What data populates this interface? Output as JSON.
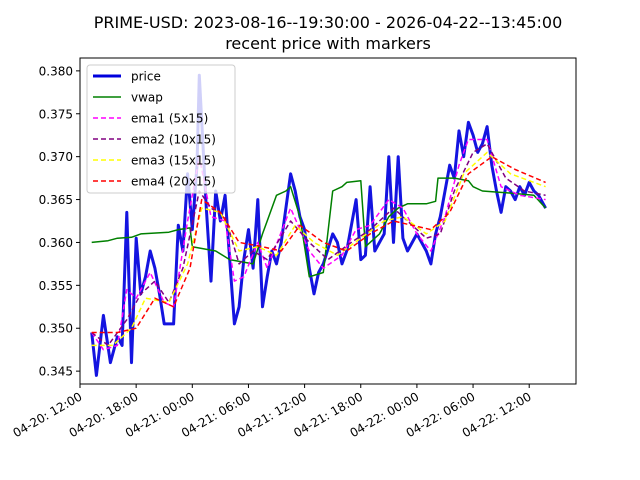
{
  "chart_data": {
    "type": "line",
    "title": "PRIME-USD: 2023-08-16--19:30:00 - 2026-04-22--13:45:00",
    "subtitle": "recent price with markers",
    "xlabel": "",
    "ylabel": "",
    "xlim": [
      "2026-04-20 12:00",
      "2026-04-22 17:00"
    ],
    "ylim": [
      0.3435,
      0.3815
    ],
    "grid": false,
    "legend_position": "top-left",
    "x_tick_labels": [
      "04-20: 12:00",
      "04-20: 18:00",
      "04-21: 00:00",
      "04-21: 06:00",
      "04-21: 12:00",
      "04-21: 18:00",
      "04-22: 00:00",
      "04-22: 06:00",
      "04-22: 12:00"
    ],
    "x_ticks": [
      "2026-04-20 12:00",
      "2026-04-20 18:00",
      "2026-04-21 00:00",
      "2026-04-21 06:00",
      "2026-04-21 12:00",
      "2026-04-21 18:00",
      "2026-04-22 00:00",
      "2026-04-22 06:00",
      "2026-04-22 12:00"
    ],
    "y_ticks": [
      "0.345",
      "0.350",
      "0.355",
      "0.360",
      "0.365",
      "0.370",
      "0.375",
      "0.380"
    ],
    "series": [
      {
        "name": "price",
        "color": "#0000dd",
        "dash": "solid",
        "width": 3,
        "points": [
          [
            "2026-04-20 13:15",
            0.3495
          ],
          [
            "2026-04-20 13:45",
            0.3445
          ],
          [
            "2026-04-20 14:30",
            0.3515
          ],
          [
            "2026-04-20 15:15",
            0.346
          ],
          [
            "2026-04-20 16:00",
            0.349
          ],
          [
            "2026-04-20 16:30",
            0.348
          ],
          [
            "2026-04-20 17:00",
            0.3635
          ],
          [
            "2026-04-20 17:30",
            0.346
          ],
          [
            "2026-04-20 18:00",
            0.3605
          ],
          [
            "2026-04-20 18:30",
            0.354
          ],
          [
            "2026-04-20 19:00",
            0.356
          ],
          [
            "2026-04-20 19:30",
            0.359
          ],
          [
            "2026-04-20 20:00",
            0.357
          ],
          [
            "2026-04-20 20:30",
            0.354
          ],
          [
            "2026-04-20 21:00",
            0.3505
          ],
          [
            "2026-04-20 22:00",
            0.3505
          ],
          [
            "2026-04-20 22:30",
            0.362
          ],
          [
            "2026-04-20 23:00",
            0.359
          ],
          [
            "2026-04-20 23:30",
            0.368
          ],
          [
            "2026-04-21 00:00",
            0.3615
          ],
          [
            "2026-04-21 00:30",
            0.369
          ],
          [
            "2026-04-21 00:45",
            0.3795
          ],
          [
            "2026-04-21 01:30",
            0.364
          ],
          [
            "2026-04-21 02:00",
            0.3555
          ],
          [
            "2026-04-21 02:30",
            0.366
          ],
          [
            "2026-04-21 03:00",
            0.3625
          ],
          [
            "2026-04-21 03:30",
            0.3655
          ],
          [
            "2026-04-21 04:00",
            0.358
          ],
          [
            "2026-04-21 04:30",
            0.3505
          ],
          [
            "2026-04-21 05:00",
            0.3525
          ],
          [
            "2026-04-21 05:30",
            0.358
          ],
          [
            "2026-04-21 06:00",
            0.3615
          ],
          [
            "2026-04-21 06:30",
            0.357
          ],
          [
            "2026-04-21 07:00",
            0.365
          ],
          [
            "2026-04-21 07:30",
            0.3525
          ],
          [
            "2026-04-21 08:00",
            0.356
          ],
          [
            "2026-04-21 08:30",
            0.359
          ],
          [
            "2026-04-21 09:00",
            0.3575
          ],
          [
            "2026-04-21 09:30",
            0.36
          ],
          [
            "2026-04-21 10:30",
            0.368
          ],
          [
            "2026-04-21 11:00",
            0.366
          ],
          [
            "2026-04-21 11:30",
            0.363
          ],
          [
            "2026-04-21 12:00",
            0.3615
          ],
          [
            "2026-04-21 12:30",
            0.357
          ],
          [
            "2026-04-21 13:00",
            0.354
          ],
          [
            "2026-04-21 13:30",
            0.3565
          ],
          [
            "2026-04-21 14:00",
            0.3575
          ],
          [
            "2026-04-21 15:00",
            0.361
          ],
          [
            "2026-04-21 15:30",
            0.36
          ],
          [
            "2026-04-21 16:00",
            0.3575
          ],
          [
            "2026-04-21 16:30",
            0.359
          ],
          [
            "2026-04-21 17:00",
            0.362
          ],
          [
            "2026-04-21 17:30",
            0.365
          ],
          [
            "2026-04-21 18:00",
            0.358
          ],
          [
            "2026-04-21 18:30",
            0.3585
          ],
          [
            "2026-04-21 19:00",
            0.3665
          ],
          [
            "2026-04-21 19:30",
            0.359
          ],
          [
            "2026-04-21 20:00",
            0.36
          ],
          [
            "2026-04-21 20:30",
            0.361
          ],
          [
            "2026-04-21 21:00",
            0.37
          ],
          [
            "2026-04-21 21:30",
            0.36
          ],
          [
            "2026-04-21 22:00",
            0.37
          ],
          [
            "2026-04-21 22:30",
            0.3605
          ],
          [
            "2026-04-21 23:00",
            0.359
          ],
          [
            "2026-04-22 00:00",
            0.361
          ],
          [
            "2026-04-22 01:00",
            0.359
          ],
          [
            "2026-04-22 01:30",
            0.3575
          ],
          [
            "2026-04-22 02:00",
            0.361
          ],
          [
            "2026-04-22 02:30",
            0.363
          ],
          [
            "2026-04-22 03:00",
            0.366
          ],
          [
            "2026-04-22 03:30",
            0.369
          ],
          [
            "2026-04-22 04:00",
            0.3675
          ],
          [
            "2026-04-22 04:30",
            0.373
          ],
          [
            "2026-04-22 05:00",
            0.37
          ],
          [
            "2026-04-22 05:30",
            0.374
          ],
          [
            "2026-04-22 06:00",
            0.3725
          ],
          [
            "2026-04-22 06:30",
            0.3705
          ],
          [
            "2026-04-22 07:00",
            0.3715
          ],
          [
            "2026-04-22 07:30",
            0.3735
          ],
          [
            "2026-04-22 08:00",
            0.369
          ],
          [
            "2026-04-22 08:30",
            0.366
          ],
          [
            "2026-04-22 09:00",
            0.3635
          ],
          [
            "2026-04-22 09:30",
            0.3665
          ],
          [
            "2026-04-22 10:00",
            0.366
          ],
          [
            "2026-04-22 10:30",
            0.365
          ],
          [
            "2026-04-22 11:00",
            0.3665
          ],
          [
            "2026-04-22 11:30",
            0.3655
          ],
          [
            "2026-04-22 12:00",
            0.367
          ],
          [
            "2026-04-22 12:30",
            0.366
          ],
          [
            "2026-04-22 13:00",
            0.3655
          ],
          [
            "2026-04-22 13:45",
            0.364
          ]
        ]
      },
      {
        "name": "vwap",
        "color": "#008000",
        "dash": "solid",
        "width": 1.5,
        "points": [
          [
            "2026-04-20 13:15",
            0.36
          ],
          [
            "2026-04-20 15:00",
            0.3602
          ],
          [
            "2026-04-20 16:00",
            0.3605
          ],
          [
            "2026-04-20 17:30",
            0.3606
          ],
          [
            "2026-04-20 18:30",
            0.361
          ],
          [
            "2026-04-20 21:30",
            0.3612
          ],
          [
            "2026-04-20 22:30",
            0.3615
          ],
          [
            "2026-04-20 23:45",
            0.3617
          ],
          [
            "2026-04-21 00:00",
            0.3595
          ],
          [
            "2026-04-21 02:30",
            0.359
          ],
          [
            "2026-04-21 04:00",
            0.358
          ],
          [
            "2026-04-21 06:30",
            0.3575
          ],
          [
            "2026-04-21 07:30",
            0.361
          ],
          [
            "2026-04-21 08:00",
            0.3625
          ],
          [
            "2026-04-21 09:00",
            0.3655
          ],
          [
            "2026-04-21 10:00",
            0.366
          ],
          [
            "2026-04-21 10:30",
            0.3665
          ],
          [
            "2026-04-21 11:30",
            0.363
          ],
          [
            "2026-04-21 12:30",
            0.356
          ],
          [
            "2026-04-21 14:00",
            0.3565
          ],
          [
            "2026-04-21 15:00",
            0.366
          ],
          [
            "2026-04-21 16:00",
            0.3665
          ],
          [
            "2026-04-21 16:30",
            0.367
          ],
          [
            "2026-04-21 18:00",
            0.3672
          ],
          [
            "2026-04-21 18:30",
            0.3595
          ],
          [
            "2026-04-21 20:00",
            0.361
          ],
          [
            "2026-04-21 21:00",
            0.363
          ],
          [
            "2026-04-21 22:00",
            0.364
          ],
          [
            "2026-04-21 23:00",
            0.3645
          ],
          [
            "2026-04-22 01:00",
            0.3645
          ],
          [
            "2026-04-22 02:00",
            0.3648
          ],
          [
            "2026-04-22 02:15",
            0.3675
          ],
          [
            "2026-04-22 04:00",
            0.3675
          ],
          [
            "2026-04-22 05:30",
            0.3672
          ],
          [
            "2026-04-22 06:00",
            0.3665
          ],
          [
            "2026-04-22 07:00",
            0.366
          ],
          [
            "2026-04-22 09:30",
            0.3658
          ],
          [
            "2026-04-22 12:30",
            0.3655
          ],
          [
            "2026-04-22 13:45",
            0.364
          ]
        ]
      },
      {
        "name": "ema1 (5x15)",
        "color": "#ff00ff",
        "dash": "dashed",
        "width": 1.5,
        "points": [
          [
            "2026-04-20 13:15",
            0.3495
          ],
          [
            "2026-04-20 14:30",
            0.3475
          ],
          [
            "2026-04-20 16:00",
            0.348
          ],
          [
            "2026-04-20 17:00",
            0.3545
          ],
          [
            "2026-04-20 18:00",
            0.3535
          ],
          [
            "2026-04-20 19:30",
            0.3565
          ],
          [
            "2026-04-20 21:00",
            0.353
          ],
          [
            "2026-04-20 22:00",
            0.3525
          ],
          [
            "2026-04-20 23:30",
            0.3625
          ],
          [
            "2026-04-21 00:45",
            0.37
          ],
          [
            "2026-04-21 02:00",
            0.363
          ],
          [
            "2026-04-21 03:30",
            0.3625
          ],
          [
            "2026-04-21 04:30",
            0.3555
          ],
          [
            "2026-04-21 05:30",
            0.356
          ],
          [
            "2026-04-21 07:00",
            0.36
          ],
          [
            "2026-04-21 08:00",
            0.357
          ],
          [
            "2026-04-21 10:30",
            0.364
          ],
          [
            "2026-04-21 12:30",
            0.359
          ],
          [
            "2026-04-21 14:00",
            0.357
          ],
          [
            "2026-04-21 16:00",
            0.3585
          ],
          [
            "2026-04-21 17:30",
            0.3615
          ],
          [
            "2026-04-21 19:00",
            0.362
          ],
          [
            "2026-04-21 21:00",
            0.365
          ],
          [
            "2026-04-21 22:30",
            0.364
          ],
          [
            "2026-04-22 00:00",
            0.361
          ],
          [
            "2026-04-22 01:30",
            0.359
          ],
          [
            "2026-04-22 03:00",
            0.363
          ],
          [
            "2026-04-22 04:30",
            0.369
          ],
          [
            "2026-04-22 05:30",
            0.372
          ],
          [
            "2026-04-22 07:30",
            0.372
          ],
          [
            "2026-04-22 09:00",
            0.3665
          ],
          [
            "2026-04-22 11:00",
            0.3655
          ],
          [
            "2026-04-22 13:45",
            0.365
          ]
        ]
      },
      {
        "name": "ema2 (10x15)",
        "color": "#800080",
        "dash": "dashed",
        "width": 1.5,
        "points": [
          [
            "2026-04-20 13:15",
            0.3495
          ],
          [
            "2026-04-20 15:00",
            0.348
          ],
          [
            "2026-04-20 17:00",
            0.351
          ],
          [
            "2026-04-20 18:30",
            0.354
          ],
          [
            "2026-04-20 20:00",
            0.3555
          ],
          [
            "2026-04-20 21:30",
            0.353
          ],
          [
            "2026-04-20 23:00",
            0.357
          ],
          [
            "2026-04-21 00:45",
            0.366
          ],
          [
            "2026-04-21 02:00",
            0.364
          ],
          [
            "2026-04-21 03:30",
            0.363
          ],
          [
            "2026-04-21 05:00",
            0.3575
          ],
          [
            "2026-04-21 06:30",
            0.359
          ],
          [
            "2026-04-21 08:00",
            0.358
          ],
          [
            "2026-04-21 10:30",
            0.3625
          ],
          [
            "2026-04-21 12:30",
            0.36
          ],
          [
            "2026-04-21 14:30",
            0.358
          ],
          [
            "2026-04-21 17:00",
            0.36
          ],
          [
            "2026-04-21 19:00",
            0.3615
          ],
          [
            "2026-04-21 21:30",
            0.364
          ],
          [
            "2026-04-21 23:00",
            0.3625
          ],
          [
            "2026-04-22 01:00",
            0.3605
          ],
          [
            "2026-04-22 02:30",
            0.361
          ],
          [
            "2026-04-22 04:00",
            0.366
          ],
          [
            "2026-04-22 06:00",
            0.3705
          ],
          [
            "2026-04-22 07:30",
            0.3715
          ],
          [
            "2026-04-22 09:30",
            0.3675
          ],
          [
            "2026-04-22 11:30",
            0.366
          ],
          [
            "2026-04-22 13:45",
            0.3655
          ]
        ]
      },
      {
        "name": "ema3 (15x15)",
        "color": "#ffff00",
        "dash": "dashed",
        "width": 1.5,
        "points": [
          [
            "2026-04-20 13:15",
            0.348
          ],
          [
            "2026-04-20 15:30",
            0.348
          ],
          [
            "2026-04-20 17:30",
            0.35
          ],
          [
            "2026-04-20 19:00",
            0.3535
          ],
          [
            "2026-04-20 21:30",
            0.353
          ],
          [
            "2026-04-20 23:30",
            0.3575
          ],
          [
            "2026-04-21 01:00",
            0.364
          ],
          [
            "2026-04-21 03:00",
            0.3635
          ],
          [
            "2026-04-21 05:00",
            0.359
          ],
          [
            "2026-04-21 07:00",
            0.3595
          ],
          [
            "2026-04-21 09:00",
            0.3585
          ],
          [
            "2026-04-21 11:00",
            0.362
          ],
          [
            "2026-04-21 13:00",
            0.36
          ],
          [
            "2026-04-21 15:30",
            0.3585
          ],
          [
            "2026-04-21 18:00",
            0.3605
          ],
          [
            "2026-04-21 20:30",
            0.3625
          ],
          [
            "2026-04-21 22:30",
            0.363
          ],
          [
            "2026-04-22 01:00",
            0.361
          ],
          [
            "2026-04-22 03:00",
            0.3625
          ],
          [
            "2026-04-22 05:00",
            0.368
          ],
          [
            "2026-04-22 07:30",
            0.3705
          ],
          [
            "2026-04-22 10:00",
            0.368
          ],
          [
            "2026-04-22 13:45",
            0.3665
          ]
        ]
      },
      {
        "name": "ema4 (20x15)",
        "color": "#ff0000",
        "dash": "dashed",
        "width": 1.5,
        "points": [
          [
            "2026-04-20 13:15",
            0.3495
          ],
          [
            "2026-04-20 16:00",
            0.3495
          ],
          [
            "2026-04-20 18:00",
            0.35
          ],
          [
            "2026-04-20 20:00",
            0.3535
          ],
          [
            "2026-04-20 22:00",
            0.3525
          ],
          [
            "2026-04-20 23:45",
            0.357
          ],
          [
            "2026-04-21 01:00",
            0.365
          ],
          [
            "2026-04-21 03:00",
            0.3635
          ],
          [
            "2026-04-21 05:00",
            0.36
          ],
          [
            "2026-04-21 07:30",
            0.3595
          ],
          [
            "2026-04-21 09:30",
            0.359
          ],
          [
            "2026-04-21 11:30",
            0.362
          ],
          [
            "2026-04-21 14:00",
            0.36
          ],
          [
            "2026-04-21 16:30",
            0.359
          ],
          [
            "2026-04-21 19:00",
            0.361
          ],
          [
            "2026-04-21 21:30",
            0.3625
          ],
          [
            "2026-04-21 23:30",
            0.362
          ],
          [
            "2026-04-22 01:30",
            0.3615
          ],
          [
            "2026-04-22 03:30",
            0.3635
          ],
          [
            "2026-04-22 05:30",
            0.368
          ],
          [
            "2026-04-22 08:00",
            0.37
          ],
          [
            "2026-04-22 10:30",
            0.3685
          ],
          [
            "2026-04-22 13:45",
            0.367
          ]
        ]
      }
    ]
  }
}
